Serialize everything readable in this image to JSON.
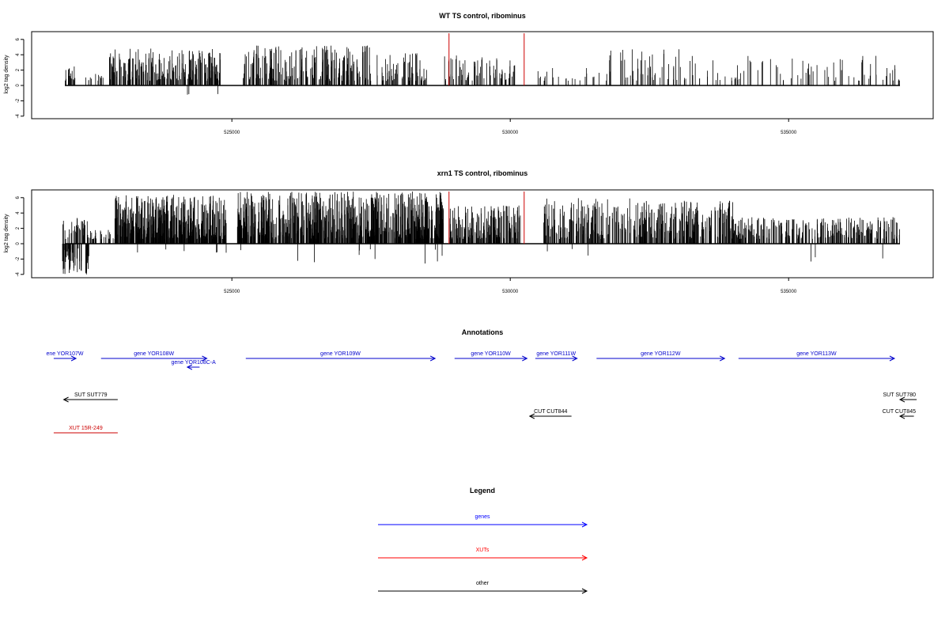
{
  "chart_data": [
    {
      "type": "bar",
      "title": "WT TS control, ribominus",
      "ylabel": "log2 tag density",
      "xlabel": "",
      "xlim": [
        521800,
        537200
      ],
      "ylim": [
        -4.5,
        7
      ],
      "x_ticks": [
        525000,
        530000,
        535000
      ],
      "x_tick_labels": [
        "525000",
        "530000",
        "535000"
      ],
      "y_ticks": [
        -4,
        -2,
        0,
        2,
        4,
        6
      ],
      "y_tick_labels": [
        "-4",
        "-2",
        "0",
        "2",
        "4",
        "6"
      ],
      "grid": false,
      "series": [
        {
          "color": "#000000",
          "segments": [
            {
              "start": 522000,
              "end": 522200,
              "density": 0.9,
              "max": 2.6,
              "min": 0,
              "seed": 11
            },
            {
              "start": 522300,
              "end": 522700,
              "density": 0.3,
              "max": 1.5,
              "min": 0,
              "seed": 12
            },
            {
              "start": 522800,
              "end": 524800,
              "density": 1.2,
              "max": 4.8,
              "min": -1.2,
              "seed": 13
            },
            {
              "start": 525200,
              "end": 527500,
              "density": 0.95,
              "max": 5.2,
              "min": 0,
              "seed": 14
            },
            {
              "start": 527600,
              "end": 528500,
              "density": 0.7,
              "max": 4.2,
              "min": 0,
              "seed": 15
            },
            {
              "start": 528800,
              "end": 530100,
              "density": 0.55,
              "max": 4.1,
              "min": 0,
              "seed": 16
            },
            {
              "start": 530400,
              "end": 531600,
              "density": 0.2,
              "max": 2.6,
              "min": -2.0,
              "seed": 17
            },
            {
              "start": 531700,
              "end": 533100,
              "density": 0.35,
              "max": 4.9,
              "min": 0,
              "seed": 18
            },
            {
              "start": 533100,
              "end": 537000,
              "density": 0.22,
              "max": 3.9,
              "min": 0,
              "seed": 19
            }
          ]
        },
        {
          "color": "#cc0000",
          "bars": [
            {
              "x": 528900,
              "y": 6.8
            },
            {
              "x": 530250,
              "y": 6.8
            }
          ]
        }
      ]
    },
    {
      "type": "bar",
      "title": "xrn1 TS control, ribominus",
      "ylabel": "log2 tag density",
      "xlabel": "",
      "xlim": [
        521800,
        537200
      ],
      "ylim": [
        -4.5,
        7
      ],
      "x_ticks": [
        525000,
        530000,
        535000
      ],
      "x_tick_labels": [
        "525000",
        "530000",
        "535000"
      ],
      "y_ticks": [
        -4,
        -2,
        0,
        2,
        4,
        6
      ],
      "y_tick_labels": [
        "-4",
        "-2",
        "0",
        "2",
        "4",
        "6"
      ],
      "grid": false,
      "series": [
        {
          "color": "#000000",
          "segments": [
            {
              "start": 521950,
              "end": 522450,
              "density": 2.0,
              "max": 3.4,
              "min": -4.0,
              "neg_bias": 0.55,
              "seed": 21
            },
            {
              "start": 522450,
              "end": 522900,
              "density": 0.6,
              "max": 1.8,
              "min": 0,
              "seed": 22
            },
            {
              "start": 522900,
              "end": 524900,
              "density": 2.2,
              "max": 6.4,
              "min": -1.3,
              "seed": 23
            },
            {
              "start": 525100,
              "end": 528800,
              "density": 1.9,
              "max": 6.8,
              "min": -2.6,
              "seed": 24
            },
            {
              "start": 528900,
              "end": 530200,
              "density": 1.3,
              "max": 5.0,
              "min": -1.8,
              "seed": 25
            },
            {
              "start": 530600,
              "end": 532200,
              "density": 1.0,
              "max": 6.0,
              "min": -2.0,
              "seed": 26
            },
            {
              "start": 532200,
              "end": 534000,
              "density": 1.2,
              "max": 5.6,
              "min": 0,
              "seed": 27
            },
            {
              "start": 534000,
              "end": 537000,
              "density": 0.9,
              "max": 3.5,
              "min": -2.8,
              "seed": 28
            }
          ]
        },
        {
          "color": "#cc0000",
          "bars": [
            {
              "x": 528900,
              "y": 6.8
            },
            {
              "x": 530250,
              "y": 6.8
            }
          ]
        }
      ]
    }
  ],
  "annotations": {
    "title": "Annotations",
    "tracks": [
      {
        "label": "ene YOR107W",
        "color": "#0000cc",
        "x1": 521800,
        "x2": 522200,
        "dir": "right",
        "row": "genes"
      },
      {
        "label": "gene YOR108W",
        "color": "#0000cc",
        "x1": 522650,
        "x2": 524550,
        "dir": "right",
        "row": "genes"
      },
      {
        "label": "gene YOR108C-A",
        "color": "#0000cc",
        "x1": 524200,
        "x2": 524420,
        "dir": "left",
        "row": "genes-sub"
      },
      {
        "label": "gene YOR109W",
        "color": "#0000cc",
        "x1": 525250,
        "x2": 528650,
        "dir": "right",
        "row": "genes"
      },
      {
        "label": "gene YOR110W",
        "color": "#0000cc",
        "x1": 529000,
        "x2": 530300,
        "dir": "right",
        "row": "genes"
      },
      {
        "label": "gene YOR111W",
        "color": "#0000cc",
        "x1": 530450,
        "x2": 531200,
        "dir": "right",
        "row": "genes"
      },
      {
        "label": "gene YOR112W",
        "color": "#0000cc",
        "x1": 531550,
        "x2": 533850,
        "dir": "right",
        "row": "genes"
      },
      {
        "label": "gene YOR113W",
        "color": "#0000cc",
        "x1": 534100,
        "x2": 536900,
        "dir": "right",
        "row": "genes"
      },
      {
        "label": "SUT SUT779",
        "color": "#000000",
        "x1": 521980,
        "x2": 522950,
        "dir": "left",
        "row": "other1"
      },
      {
        "label": "SUT SUT780",
        "color": "#000000",
        "x1": 537000,
        "x2": 537300,
        "dir": "left",
        "row": "other1"
      },
      {
        "label": "CUT CUT844",
        "color": "#000000",
        "x1": 530350,
        "x2": 531100,
        "dir": "left",
        "row": "other2"
      },
      {
        "label": "CUT CUT845",
        "color": "#000000",
        "x1": 537000,
        "x2": 537250,
        "dir": "left",
        "row": "other2"
      },
      {
        "label": "XUT 15R-249",
        "color": "#cc0000",
        "x1": 521800,
        "x2": 522950,
        "dir": "none",
        "row": "xut"
      }
    ]
  },
  "legend": {
    "title": "Legend",
    "items": [
      {
        "label": "genes",
        "color": "#0000ff"
      },
      {
        "label": "XUTs",
        "color": "#ff0000"
      },
      {
        "label": "other",
        "color": "#000000"
      }
    ]
  }
}
